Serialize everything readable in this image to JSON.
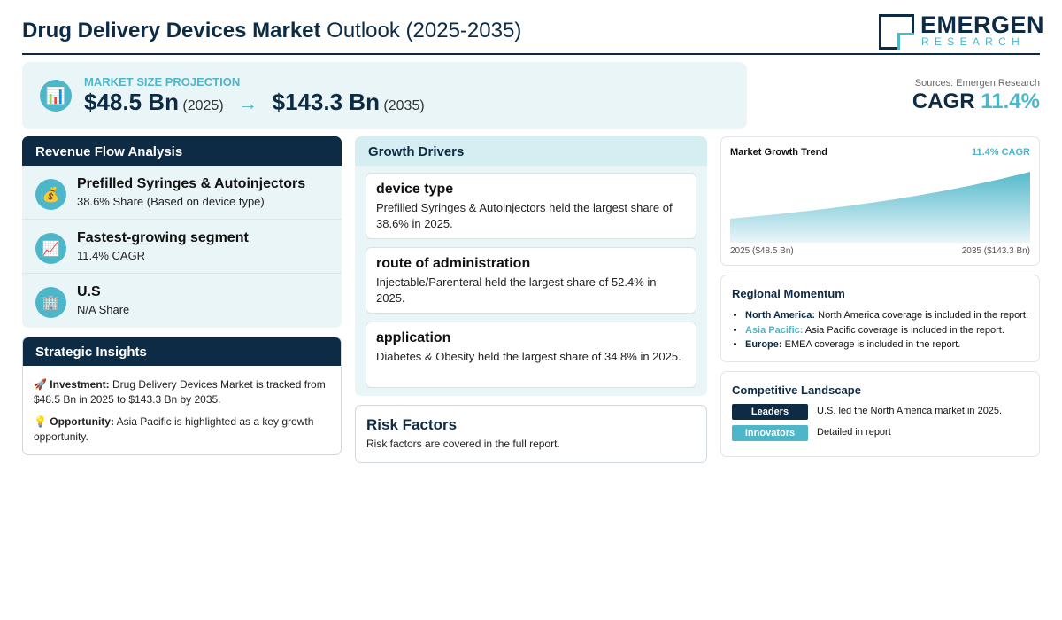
{
  "header": {
    "title_bold": "Drug Delivery Devices Market",
    "title_rest": " Outlook (2025-2035)",
    "logo_top": "EMERGEN",
    "logo_bottom": "RESEARCH"
  },
  "projection": {
    "icon": "bar-chart-icon",
    "label": "MARKET SIZE PROJECTION",
    "start_value": "$48.5 Bn",
    "start_year": "(2025)",
    "arrow": "→",
    "end_value": "$143.3 Bn",
    "end_year": "(2035)"
  },
  "sources": "Sources: Emergen Research",
  "cagr": {
    "label": "CAGR",
    "value": "11.4%"
  },
  "revenue_flow": {
    "title": "Revenue Flow Analysis",
    "items": [
      {
        "icon": "money-bag-icon",
        "title": "Prefilled Syringes & Autoinjectors",
        "subtitle": "38.6% Share (Based on device type)"
      },
      {
        "icon": "trending-up-icon",
        "title": "Fastest-growing segment",
        "subtitle": "11.4% CAGR"
      },
      {
        "icon": "building-icon",
        "title": "U.S",
        "subtitle": "N/A Share"
      }
    ]
  },
  "strategic": {
    "title": "Strategic Insights",
    "investment_icon": "🚀",
    "investment_label": "Investment:",
    "investment_text": " Drug Delivery Devices Market is tracked from $48.5 Bn in 2025 to $143.3 Bn by 2035.",
    "opportunity_icon": "💡",
    "opportunity_label": "Opportunity:",
    "opportunity_text": " Asia Pacific is highlighted as a key growth opportunity."
  },
  "drivers": {
    "title": "Growth Drivers",
    "items": [
      {
        "heading": "device type",
        "text": "Prefilled Syringes & Autoinjectors held the largest share of 38.6% in 2025."
      },
      {
        "heading": "route of administration",
        "text": "Injectable/Parenteral held the largest share of 52.4% in 2025."
      },
      {
        "heading": "application",
        "text": "Diabetes & Obesity held the largest share of 34.8% in 2025."
      }
    ]
  },
  "risk": {
    "title": "Risk Factors",
    "text": "Risk factors are covered in the full report."
  },
  "trend": {
    "title": "Market Growth Trend",
    "cagr_label": "11.4% CAGR",
    "x_start": "2025 ($48.5 Bn)",
    "x_end": "2035 ($143.3 Bn)"
  },
  "chart_data": {
    "type": "area",
    "title": "Market Growth Trend",
    "x": [
      2025,
      2035
    ],
    "values": [
      48.5,
      143.3
    ],
    "unit": "USD Bn",
    "colors": {
      "fill_top": "#4db6c9",
      "fill_bottom": "#eaf6f9"
    }
  },
  "regional": {
    "title": "Regional Momentum",
    "items": [
      {
        "region": "North America:",
        "text": " North America coverage is included in the report.",
        "color": "#0d2b45"
      },
      {
        "region": "Asia Pacific:",
        "text": " Asia Pacific coverage is included in the report.",
        "color": "#4db6c9"
      },
      {
        "region": "Europe:",
        "text": " EMEA coverage is included in the report.",
        "color": "#0d2b45"
      }
    ]
  },
  "competitive": {
    "title": "Competitive Landscape",
    "rows": [
      {
        "tag": "Leaders",
        "text": "U.S. led the North America market in 2025.",
        "color": "#0d2b45"
      },
      {
        "tag": "Innovators",
        "text": "Detailed in report",
        "color": "#4db6c9"
      }
    ]
  },
  "colors": {
    "navy": "#0d2b45",
    "teal": "#4db6c9",
    "panel": "#eaf5f8"
  }
}
